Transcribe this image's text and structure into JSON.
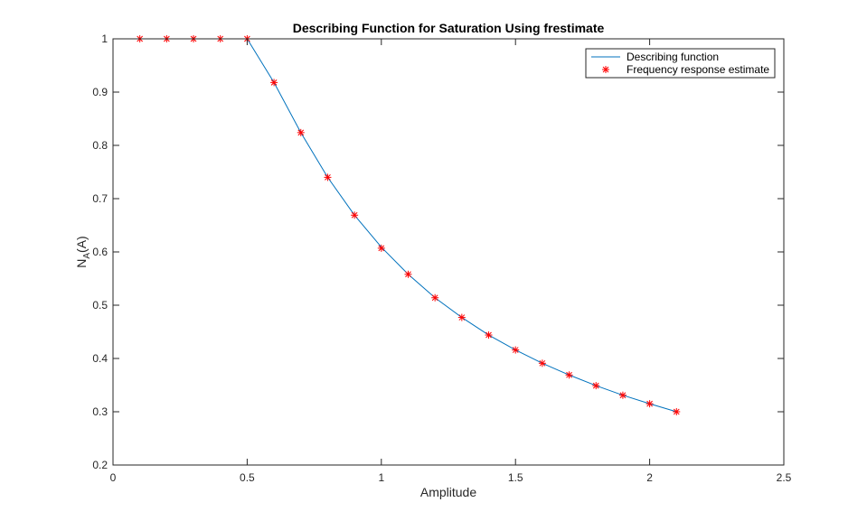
{
  "chart_data": {
    "type": "line",
    "title": "Describing Function for Saturation Using frestimate",
    "xlabel": "Amplitude",
    "ylabel": {
      "main": "N",
      "sub": "A",
      "rest": "(A)"
    },
    "xlim": [
      0,
      2.5
    ],
    "ylim": [
      0.2,
      1
    ],
    "xticks": [
      0,
      0.5,
      1,
      1.5,
      2,
      2.5
    ],
    "xtick_labels": [
      "0",
      "0.5",
      "1",
      "1.5",
      "2",
      "2.5"
    ],
    "yticks": [
      0.2,
      0.3,
      0.4,
      0.5,
      0.6,
      0.7,
      0.8,
      0.9,
      1
    ],
    "ytick_labels": [
      "0.2",
      "0.3",
      "0.4",
      "0.5",
      "0.6",
      "0.7",
      "0.8",
      "0.9",
      "1"
    ],
    "grid": false,
    "legend_position": "top-right",
    "series": [
      {
        "name": "Describing function",
        "style": "line",
        "color": "#0072BD",
        "x": [
          0.1,
          0.2,
          0.3,
          0.4,
          0.5,
          0.6,
          0.7,
          0.8,
          0.9,
          1.0,
          1.1,
          1.2,
          1.3,
          1.4,
          1.5,
          1.6,
          1.7,
          1.8,
          1.9,
          2.0,
          2.1
        ],
        "y": [
          1,
          1,
          1,
          1,
          1,
          0.918,
          0.824,
          0.74,
          0.669,
          0.609,
          0.558,
          0.514,
          0.477,
          0.444,
          0.416,
          0.391,
          0.369,
          0.349,
          0.331,
          0.315,
          0.3
        ]
      },
      {
        "name": "Frequency response estimate",
        "style": "marker",
        "marker": "*",
        "color": "#FF0000",
        "x": [
          0.1,
          0.2,
          0.3,
          0.4,
          0.5,
          0.6,
          0.7,
          0.8,
          0.9,
          1.0,
          1.1,
          1.2,
          1.3,
          1.4,
          1.5,
          1.6,
          1.7,
          1.8,
          1.9,
          2.0,
          2.1
        ],
        "y": [
          1,
          1,
          1,
          1,
          1,
          0.918,
          0.824,
          0.74,
          0.669,
          0.607,
          0.558,
          0.514,
          0.477,
          0.444,
          0.416,
          0.391,
          0.369,
          0.349,
          0.331,
          0.315,
          0.3
        ]
      }
    ]
  }
}
